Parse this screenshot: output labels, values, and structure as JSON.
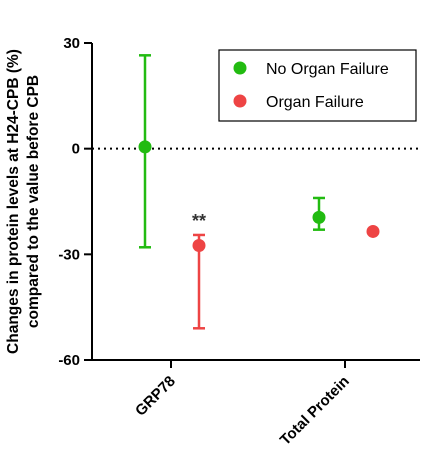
{
  "chart_data": {
    "type": "scatter",
    "ylabel": [
      "Changes in protein levels at H24-CPB (%)",
      "compared to the value before CPB"
    ],
    "ylim": [
      -60,
      30
    ],
    "yticks": [
      30,
      0,
      -30,
      -60
    ],
    "reference_line": 0,
    "categories": [
      "GRP78",
      "Total Protein"
    ],
    "series": [
      {
        "name": "No Organ Failure",
        "color": "#22bb11",
        "points": [
          {
            "category": "GRP78",
            "value": 0.5,
            "err_low": -28,
            "err_high": 26.5
          },
          {
            "category": "Total Protein",
            "value": -19.5,
            "err_low": -23,
            "err_high": -14
          }
        ]
      },
      {
        "name": "Organ Failure",
        "color": "#ee4444",
        "points": [
          {
            "category": "GRP78",
            "value": -27.5,
            "err_low": -51,
            "err_high": -24.5
          },
          {
            "category": "Total Protein",
            "value": -23.5,
            "err_low": null,
            "err_high": null
          }
        ]
      }
    ],
    "annotations": [
      {
        "text": "**",
        "category": "GRP78",
        "series": "Organ Failure"
      }
    ],
    "legend_position": "top-right",
    "grid": false
  }
}
